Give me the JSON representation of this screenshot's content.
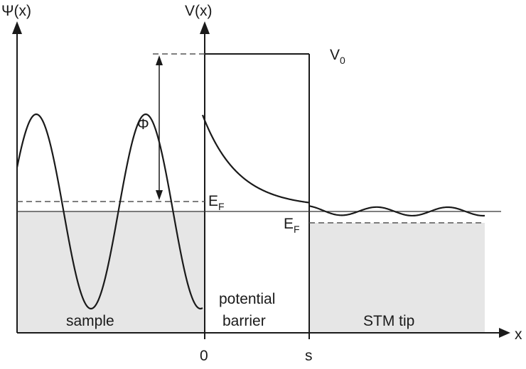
{
  "labels": {
    "psi_axis": "Ψ(x)",
    "v_axis": "V(x)",
    "x_axis": "x",
    "v0": "V",
    "v0_sub": "0",
    "phi": "Φ",
    "ef_sample": "E",
    "ef_sample_sub": "F",
    "ef_tip": "E",
    "ef_tip_sub": "F",
    "origin": "0",
    "s": "s"
  },
  "regions": {
    "sample": "sample",
    "barrier_line1": "potential",
    "barrier_line2": "barrier",
    "tip": "STM tip"
  },
  "colors": {
    "line": "#1a1a1a",
    "fill": "#e6e6e6",
    "dash": "#555555"
  }
}
